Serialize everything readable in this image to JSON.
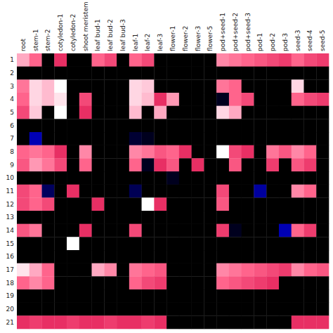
{
  "chart_data": {
    "type": "heatmap",
    "categories": [
      "root",
      "stem-1",
      "stem-2",
      "cotyledon-1",
      "cotyledon-2",
      "shoot meristem",
      "leaf bud-1",
      "leaf bud-2",
      "leaf bud-3",
      "leaf-1",
      "leaf-2",
      "leaf-3",
      "flower-1",
      "flower-2",
      "flower-3",
      "flower-5",
      "pod+seed-1",
      "pod+seed-2",
      "pod+seed-3",
      "pod-1",
      "pod-2",
      "pod-3",
      "seed-3",
      "seed-4",
      "seed-5"
    ],
    "y_categories": [
      "1",
      "2",
      "3",
      "4",
      "5",
      "6",
      "7",
      "8",
      "9",
      "10",
      "11",
      "12",
      "13",
      "14",
      "15",
      "16",
      "17",
      "18",
      "19",
      "20",
      "21"
    ],
    "values": [
      [
        0.7,
        0.5,
        0.0,
        0.3,
        0.0,
        0.0,
        0.5,
        0.4,
        0.0,
        0.5,
        0.4,
        0.0,
        0.0,
        0.0,
        0.0,
        0.0,
        0.6,
        0.55,
        0.5,
        0.45,
        0.4,
        0.35,
        0.5,
        0.4,
        0.35
      ],
      [
        0.0,
        0.0,
        0.0,
        0.0,
        0.0,
        0.0,
        0.0,
        0.0,
        0.0,
        0.0,
        0.0,
        0.0,
        0.0,
        0.0,
        0.0,
        0.0,
        0.0,
        0.0,
        0.0,
        0.0,
        0.0,
        0.0,
        0.0,
        0.0,
        0.0
      ],
      [
        0.55,
        0.85,
        0.75,
        1.0,
        0.0,
        0.0,
        0.0,
        0.0,
        0.0,
        0.85,
        0.8,
        0.0,
        0.0,
        0.0,
        0.0,
        0.0,
        0.55,
        0.5,
        0.0,
        0.0,
        0.0,
        0.0,
        0.85,
        0.0,
        0.0
      ],
      [
        0.5,
        0.85,
        0.75,
        0.9,
        0.0,
        0.4,
        0.0,
        0.0,
        0.0,
        0.85,
        0.75,
        0.3,
        0.65,
        0.0,
        0.0,
        0.0,
        -0.3,
        0.5,
        0.4,
        0.0,
        0.0,
        0.0,
        0.5,
        0.4,
        0.35
      ],
      [
        0.4,
        0.8,
        0.0,
        1.0,
        0.0,
        0.3,
        0.0,
        0.0,
        0.0,
        0.75,
        0.0,
        0.7,
        0.0,
        0.0,
        0.0,
        0.0,
        0.85,
        0.7,
        0.0,
        0.0,
        0.0,
        0.0,
        0.0,
        0.0,
        0.0
      ],
      [
        0.0,
        0.0,
        0.0,
        0.0,
        0.0,
        0.0,
        0.0,
        0.0,
        0.0,
        0.0,
        0.0,
        0.0,
        0.0,
        0.0,
        0.0,
        0.0,
        0.0,
        0.0,
        0.0,
        0.0,
        0.0,
        0.0,
        0.0,
        0.0,
        0.0
      ],
      [
        0.0,
        -1.0,
        0.0,
        0.0,
        0.0,
        0.0,
        0.0,
        0.0,
        0.0,
        -0.4,
        -0.3,
        0.0,
        0.0,
        0.0,
        0.0,
        0.0,
        0.0,
        0.0,
        0.0,
        0.0,
        0.0,
        0.0,
        0.0,
        0.0,
        0.0
      ],
      [
        0.5,
        0.55,
        0.5,
        0.3,
        0.0,
        0.6,
        0.0,
        0.0,
        0.0,
        0.6,
        0.55,
        0.45,
        0.5,
        0.3,
        0.0,
        0.0,
        1.0,
        0.4,
        0.3,
        0.0,
        0.55,
        0.45,
        0.6,
        0.5,
        0.0
      ],
      [
        0.45,
        0.65,
        0.55,
        0.4,
        0.0,
        0.5,
        0.0,
        0.0,
        0.0,
        0.5,
        -0.3,
        0.3,
        0.45,
        0.0,
        0.3,
        0.0,
        0.0,
        0.45,
        0.0,
        0.0,
        0.35,
        0.0,
        0.45,
        0.35,
        0.0
      ],
      [
        0.0,
        0.0,
        0.0,
        0.0,
        0.0,
        0.0,
        0.0,
        0.0,
        0.0,
        0.0,
        0.0,
        0.0,
        -0.3,
        0.0,
        0.0,
        0.0,
        0.0,
        0.0,
        0.0,
        0.0,
        0.0,
        0.0,
        0.0,
        0.0,
        0.0
      ],
      [
        0.4,
        0.5,
        -0.6,
        0.0,
        0.3,
        0.0,
        0.0,
        0.0,
        0.0,
        -0.55,
        0.0,
        0.0,
        0.0,
        0.0,
        0.0,
        0.0,
        0.4,
        0.0,
        0.0,
        -0.9,
        0.0,
        0.0,
        0.6,
        0.5,
        0.0
      ],
      [
        0.4,
        0.5,
        0.4,
        0.0,
        0.0,
        0.0,
        0.3,
        0.0,
        0.0,
        0.0,
        1.0,
        0.3,
        0.0,
        0.0,
        0.0,
        0.0,
        0.45,
        0.0,
        0.0,
        0.0,
        0.0,
        0.0,
        0.0,
        0.0,
        0.0
      ],
      [
        0.0,
        0.0,
        0.0,
        0.0,
        0.0,
        0.0,
        0.0,
        0.0,
        0.0,
        0.0,
        0.0,
        0.0,
        0.0,
        0.0,
        0.0,
        0.0,
        0.0,
        0.0,
        0.0,
        0.0,
        0.0,
        0.0,
        0.0,
        0.0,
        0.0
      ],
      [
        0.45,
        0.55,
        0.0,
        0.0,
        0.0,
        0.3,
        0.0,
        0.0,
        0.0,
        0.4,
        0.0,
        0.0,
        0.0,
        0.0,
        0.0,
        0.0,
        0.35,
        -0.3,
        0.0,
        0.0,
        0.0,
        -1.0,
        0.5,
        0.35,
        0.0
      ],
      [
        0.0,
        0.0,
        0.0,
        0.0,
        1.0,
        0.0,
        0.0,
        0.0,
        0.0,
        0.0,
        0.0,
        0.0,
        0.0,
        0.0,
        0.0,
        0.0,
        0.0,
        0.0,
        0.0,
        0.0,
        0.0,
        0.0,
        0.0,
        0.0,
        0.0
      ],
      [
        0.0,
        0.0,
        0.0,
        0.0,
        0.0,
        0.0,
        0.0,
        0.0,
        0.0,
        0.0,
        0.0,
        0.0,
        0.0,
        0.0,
        0.0,
        0.0,
        0.0,
        0.0,
        0.0,
        0.0,
        0.0,
        0.0,
        0.0,
        0.0,
        0.0
      ],
      [
        0.9,
        0.7,
        0.5,
        0.0,
        0.0,
        0.0,
        0.7,
        0.6,
        0.0,
        0.55,
        0.5,
        0.45,
        0.0,
        0.0,
        0.0,
        0.0,
        0.6,
        0.55,
        0.5,
        0.45,
        0.4,
        0.35,
        0.6,
        0.5,
        0.45
      ],
      [
        0.5,
        0.6,
        0.5,
        0.0,
        0.0,
        0.0,
        0.0,
        0.0,
        0.0,
        0.5,
        0.4,
        0.35,
        0.0,
        0.0,
        0.0,
        0.0,
        0.5,
        0.45,
        0.4,
        0.35,
        0.3,
        0.0,
        0.0,
        0.0,
        0.0
      ],
      [
        0.0,
        0.0,
        0.0,
        0.0,
        0.0,
        0.0,
        0.0,
        0.0,
        0.0,
        0.0,
        0.0,
        0.0,
        0.0,
        0.0,
        0.0,
        0.0,
        0.0,
        0.0,
        0.0,
        0.0,
        0.0,
        0.0,
        0.0,
        0.0,
        0.0
      ],
      [
        0.0,
        0.0,
        0.0,
        0.0,
        0.0,
        0.0,
        0.0,
        0.0,
        0.0,
        0.0,
        0.0,
        0.0,
        0.0,
        0.0,
        0.0,
        0.0,
        0.0,
        0.0,
        0.0,
        0.0,
        0.0,
        0.0,
        0.0,
        0.0,
        0.0
      ],
      [
        0.3,
        0.35,
        0.3,
        0.3,
        0.35,
        0.3,
        0.3,
        0.35,
        0.3,
        0.3,
        0.35,
        0.3,
        0.0,
        0.0,
        0.0,
        0.0,
        0.0,
        0.0,
        0.0,
        0.0,
        0.0,
        0.0,
        0.3,
        0.3,
        0.3
      ]
    ],
    "color_range": [
      -1.0,
      1.0
    ],
    "colorscale": [
      [
        0.0,
        "#0000b4"
      ],
      [
        0.42,
        "#000000"
      ],
      [
        0.5,
        "#000000"
      ],
      [
        0.6,
        "#dc1450"
      ],
      [
        0.75,
        "#ff648c"
      ],
      [
        0.88,
        "#ffbed2"
      ],
      [
        1.0,
        "#ffffff"
      ]
    ]
  }
}
